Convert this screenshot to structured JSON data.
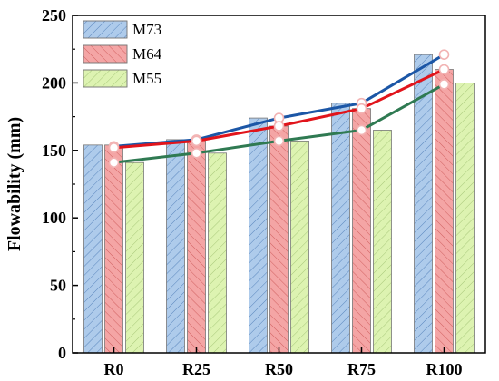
{
  "chart_data": {
    "type": "bar",
    "categories": [
      "R0",
      "R25",
      "R50",
      "R75",
      "R100"
    ],
    "series": [
      {
        "name": "M73",
        "values": [
          154,
          158,
          174,
          185,
          221
        ],
        "fill": "#aecbeb",
        "line_color": "#1b56a6",
        "line_values": [
          153,
          158,
          174,
          185,
          221
        ]
      },
      {
        "name": "M64",
        "values": [
          154,
          158,
          168,
          181,
          210
        ],
        "fill": "#f4a5a5",
        "line_color": "#e1141b",
        "line_values": [
          152,
          157,
          168,
          181,
          210
        ]
      },
      {
        "name": "M55",
        "values": [
          141,
          148,
          157,
          165,
          200
        ],
        "fill": "#ddf3b1",
        "line_color": "#2f7a52",
        "line_values": [
          141,
          148,
          157,
          165,
          199
        ]
      }
    ],
    "xlabel": "",
    "ylabel": "Flowability (mm)",
    "ylim": [
      0,
      250
    ],
    "yticks": [
      0,
      50,
      100,
      150,
      200,
      250
    ],
    "grid": false,
    "legend_position": "top-left",
    "hatch": "diagonal",
    "marker_color": "#f2b3b3"
  }
}
